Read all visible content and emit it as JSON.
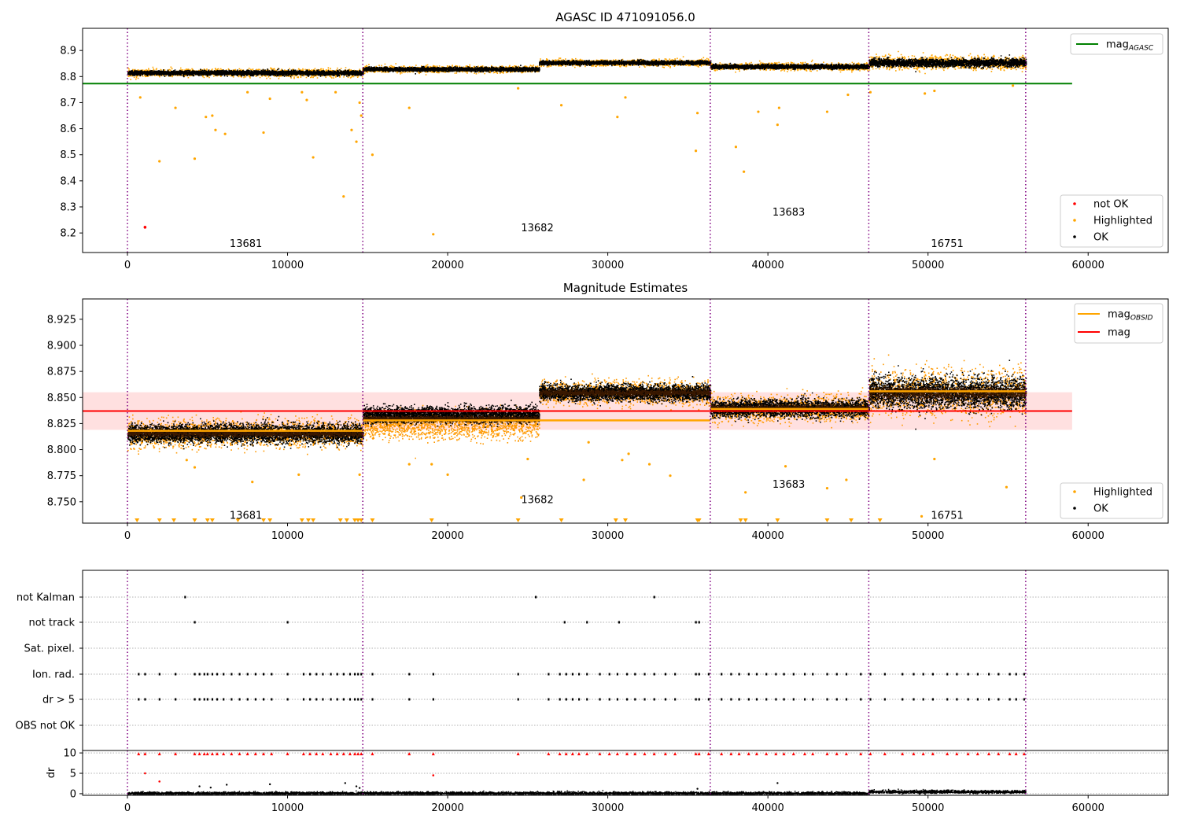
{
  "chart_data": [
    {
      "type": "scatter",
      "title": "AGASC ID 471091056.0",
      "xlim": [
        -2800,
        65000
      ],
      "ylim": [
        8.125,
        8.985
      ],
      "xticks": [
        0,
        10000,
        20000,
        30000,
        40000,
        50000,
        60000
      ],
      "yticks": [
        8.2,
        8.3,
        8.4,
        8.5,
        8.6,
        8.7,
        8.8,
        8.9
      ],
      "obsid_boundaries": [
        0,
        14700,
        36400,
        46300,
        56100
      ],
      "obsids": [
        {
          "label": "13681",
          "x": 7400,
          "y": 8.16
        },
        {
          "label": "13682",
          "x": 25600,
          "y": 8.22
        },
        {
          "label": "13683",
          "x": 41300,
          "y": 8.28
        },
        {
          "label": "16751",
          "x": 51200,
          "y": 8.16
        }
      ],
      "segments": [
        {
          "x0": 0,
          "x1": 14700,
          "center": 8.816,
          "half_width": 0.013
        },
        {
          "x0": 14700,
          "x1": 25700,
          "center": 8.83,
          "half_width": 0.011
        },
        {
          "x0": 25700,
          "x1": 36400,
          "center": 8.855,
          "half_width": 0.011
        },
        {
          "x0": 36400,
          "x1": 46300,
          "center": 8.84,
          "half_width": 0.012
        },
        {
          "x0": 46300,
          "x1": 56100,
          "center": 8.855,
          "half_width": 0.022
        }
      ],
      "reference_line": {
        "name": "mag",
        "subscript": "AGASC",
        "value": 8.773,
        "x0": -2800,
        "x1": 59000,
        "color": "#008000"
      },
      "outliers": {
        "highlighted": [
          [
            800,
            8.72
          ],
          [
            2000,
            8.475
          ],
          [
            3000,
            8.68
          ],
          [
            4200,
            8.485
          ],
          [
            4900,
            8.645
          ],
          [
            5300,
            8.65
          ],
          [
            5500,
            8.595
          ],
          [
            6100,
            8.58
          ],
          [
            7500,
            8.74
          ],
          [
            8500,
            8.585
          ],
          [
            8900,
            8.715
          ],
          [
            10900,
            8.74
          ],
          [
            11200,
            8.71
          ],
          [
            11600,
            8.49
          ],
          [
            13000,
            8.74
          ],
          [
            13500,
            8.34
          ],
          [
            14000,
            8.595
          ],
          [
            14300,
            8.55
          ],
          [
            14500,
            8.7
          ],
          [
            14600,
            8.65
          ],
          [
            15300,
            8.5
          ],
          [
            17600,
            8.68
          ],
          [
            19100,
            8.195
          ],
          [
            24400,
            8.755
          ],
          [
            27100,
            8.69
          ],
          [
            30600,
            8.645
          ],
          [
            31100,
            8.72
          ],
          [
            35500,
            8.515
          ],
          [
            35600,
            8.66
          ],
          [
            38000,
            8.53
          ],
          [
            38500,
            8.435
          ],
          [
            39400,
            8.665
          ],
          [
            40600,
            8.615
          ],
          [
            40700,
            8.68
          ],
          [
            43700,
            8.665
          ],
          [
            45000,
            8.73
          ],
          [
            46400,
            8.74
          ],
          [
            49800,
            8.735
          ],
          [
            50400,
            8.745
          ],
          [
            55300,
            8.765
          ]
        ],
        "not_ok": [
          [
            1100,
            8.222
          ]
        ]
      },
      "legends": [
        {
          "position": "upper-right",
          "entries": [
            {
              "label": "mag",
              "subscript": "AGASC",
              "marker": "line",
              "color": "#008000"
            }
          ]
        },
        {
          "position": "lower-right",
          "entries": [
            {
              "label": "not OK",
              "marker": "dot",
              "color": "#ff0000"
            },
            {
              "label": "Highlighted",
              "marker": "dot",
              "color": "#ffa500"
            },
            {
              "label": "OK",
              "marker": "dot",
              "color": "#000000"
            }
          ]
        }
      ]
    },
    {
      "type": "scatter",
      "title": "Magnitude Estimates",
      "xlim": [
        -2800,
        65000
      ],
      "ylim": [
        8.7295,
        8.9445
      ],
      "xticks": [
        0,
        10000,
        20000,
        30000,
        40000,
        50000,
        60000
      ],
      "yticks": [
        8.75,
        8.775,
        8.8,
        8.825,
        8.85,
        8.875,
        8.9,
        8.925
      ],
      "obsid_boundaries": [
        0,
        14700,
        36400,
        46300,
        56100
      ],
      "obsids": [
        {
          "label": "13681",
          "x": 7400,
          "y": 8.737
        },
        {
          "label": "13682",
          "x": 25600,
          "y": 8.752
        },
        {
          "label": "13683",
          "x": 41300,
          "y": 8.767
        },
        {
          "label": "16751",
          "x": 51200,
          "y": 8.737
        }
      ],
      "segments": [
        {
          "x0": 0,
          "x1": 14700,
          "center": 8.816,
          "half_width": 0.013
        },
        {
          "x0": 14700,
          "x1": 25700,
          "center": 8.83,
          "half_width": 0.011
        },
        {
          "x0": 25700,
          "x1": 36400,
          "center": 8.855,
          "half_width": 0.011
        },
        {
          "x0": 36400,
          "x1": 46300,
          "center": 8.84,
          "half_width": 0.012
        },
        {
          "x0": 46300,
          "x1": 56100,
          "center": 8.855,
          "half_width": 0.022
        }
      ],
      "obsid_means": [
        {
          "x0": 0,
          "x1": 14700,
          "value": 8.818
        },
        {
          "x0": 14700,
          "x1": 36400,
          "value": 8.828
        },
        {
          "x0": 36400,
          "x1": 46300,
          "value": 8.839
        },
        {
          "x0": 46300,
          "x1": 56100,
          "value": 8.856
        }
      ],
      "mag_line": {
        "value": 8.837,
        "x0": -2800,
        "x1": 59000,
        "band": [
          8.819,
          8.855
        ]
      },
      "outliers": {
        "highlighted": [
          [
            3700,
            8.79
          ],
          [
            4200,
            8.783
          ],
          [
            7800,
            8.769
          ],
          [
            10700,
            8.776
          ],
          [
            14500,
            8.776
          ],
          [
            17600,
            8.786
          ],
          [
            19000,
            8.786
          ],
          [
            20000,
            8.776
          ],
          [
            24600,
            8.754
          ],
          [
            25000,
            8.791
          ],
          [
            28500,
            8.771
          ],
          [
            28800,
            8.807
          ],
          [
            30900,
            8.79
          ],
          [
            31300,
            8.796
          ],
          [
            32600,
            8.786
          ],
          [
            33900,
            8.775
          ],
          [
            38600,
            8.759
          ],
          [
            41100,
            8.784
          ],
          [
            43700,
            8.763
          ],
          [
            44900,
            8.771
          ],
          [
            49600,
            8.736
          ],
          [
            50400,
            8.791
          ],
          [
            54900,
            8.764
          ]
        ],
        "lower_limit_x": [
          600,
          2000,
          2900,
          4200,
          5000,
          5300,
          6900,
          8500,
          8900,
          10900,
          11300,
          11600,
          13300,
          13700,
          14200,
          14400,
          14600,
          15300,
          19000,
          24400,
          27100,
          30500,
          31100,
          35600,
          35700,
          38300,
          38600,
          40600,
          43700,
          45200,
          47000
        ]
      },
      "legends": [
        {
          "position": "upper-right",
          "entries": [
            {
              "label": "mag",
              "subscript": "OBSID",
              "marker": "line",
              "color": "#ffa500"
            },
            {
              "label": "mag",
              "marker": "line",
              "color": "#ff0000"
            }
          ]
        },
        {
          "position": "lower-right",
          "entries": [
            {
              "label": "Highlighted",
              "marker": "dot",
              "color": "#ffa500"
            },
            {
              "label": "OK",
              "marker": "dot",
              "color": "#000000"
            }
          ]
        }
      ]
    },
    {
      "type": "scatter",
      "title": "",
      "xlim": [
        -2800,
        65000
      ],
      "xticks": [
        0,
        10000,
        20000,
        30000,
        40000,
        50000,
        60000
      ],
      "obsid_boundaries": [
        0,
        14700,
        36400,
        46300,
        56100
      ],
      "flag_categories": [
        "not Kalman",
        "not track",
        "Sat. pixel.",
        "Ion. rad.",
        "dr > 5",
        "OBS not OK"
      ],
      "flag_events": {
        "not Kalman": [
          3600,
          25500,
          32900
        ],
        "not track": [
          4200,
          10000,
          27300,
          28700,
          30700,
          35500,
          35700
        ],
        "Sat. pixel.": [],
        "Ion. rad.": [
          700,
          1100,
          2000,
          3000,
          4200,
          4500,
          4800,
          5000,
          5300,
          5600,
          6000,
          6500,
          7000,
          7500,
          8000,
          8500,
          9000,
          10000,
          11000,
          11400,
          11800,
          12200,
          12700,
          13100,
          13500,
          13900,
          14200,
          14400,
          14600,
          15300,
          17600,
          19100,
          24400,
          26300,
          27000,
          27400,
          27800,
          28200,
          28700,
          29500,
          30100,
          30600,
          31200,
          31700,
          32300,
          32900,
          33600,
          34200,
          35500,
          35700,
          36300,
          37100,
          37700,
          38200,
          38800,
          39300,
          39900,
          40500,
          41000,
          41600,
          42300,
          42800,
          43700,
          44300,
          44900,
          45800,
          46400,
          47300,
          48400,
          49100,
          49700,
          50300,
          51200,
          51800,
          52500,
          53100,
          53800,
          54400,
          55100,
          55500,
          56000
        ],
        "dr > 5": [
          700,
          1100,
          2000,
          3000,
          4200,
          4500,
          4800,
          5000,
          5300,
          5600,
          6000,
          6500,
          7000,
          7500,
          8000,
          8500,
          9000,
          10000,
          11000,
          11400,
          11800,
          12200,
          12700,
          13100,
          13500,
          13900,
          14200,
          14400,
          14600,
          15300,
          17600,
          19100,
          24400,
          26300,
          27000,
          27400,
          27800,
          28200,
          28700,
          29500,
          30100,
          30600,
          31200,
          31700,
          32300,
          32900,
          33600,
          34200,
          35500,
          35700,
          36300,
          37100,
          37700,
          38200,
          38800,
          39300,
          39900,
          40500,
          41000,
          41600,
          42300,
          42800,
          43700,
          44300,
          44900,
          45800,
          46400,
          47300,
          48400,
          49100,
          49700,
          50300,
          51200,
          51800,
          52500,
          53100,
          53800,
          54400,
          55100,
          55500,
          56000
        ],
        "OBS not OK": []
      }
    },
    {
      "type": "scatter",
      "title": "",
      "ylabel": "dr",
      "xlim": [
        -2800,
        65000
      ],
      "ylim": [
        -0.4,
        10.6
      ],
      "xticks": [
        0,
        10000,
        20000,
        30000,
        40000,
        50000,
        60000
      ],
      "yticks": [
        0,
        5,
        10
      ],
      "obsid_boundaries": [
        0,
        14700,
        36400,
        46300,
        56100
      ],
      "baseline_levels": [
        {
          "x0": 0,
          "x1": 46300,
          "value": 0.2
        },
        {
          "x0": 46300,
          "x1": 56100,
          "value": 0.6
        }
      ],
      "clipped_at_10_x": [
        700,
        1100,
        2000,
        3000,
        4200,
        4500,
        4800,
        5000,
        5300,
        5600,
        6000,
        6500,
        7000,
        7500,
        8000,
        8500,
        9000,
        10000,
        11000,
        11400,
        11800,
        12200,
        12700,
        13100,
        13500,
        13900,
        14200,
        14400,
        14600,
        15300,
        17600,
        19100,
        24400,
        26300,
        27000,
        27400,
        27800,
        28200,
        28700,
        29500,
        30100,
        30600,
        31200,
        31700,
        32300,
        32900,
        33600,
        34200,
        35500,
        35700,
        36300,
        37100,
        37700,
        38200,
        38800,
        39300,
        39900,
        40500,
        41000,
        41600,
        42300,
        42800,
        43700,
        44300,
        44900,
        45800,
        46400,
        47300,
        48400,
        49100,
        49700,
        50300,
        51200,
        51800,
        52500,
        53100,
        53800,
        54400,
        55100,
        55500,
        56000
      ],
      "outliers": {
        "red": [
          [
            1100,
            5.0
          ],
          [
            2000,
            3.0
          ],
          [
            19100,
            4.5
          ]
        ],
        "black": [
          [
            4500,
            1.8
          ],
          [
            5200,
            1.5
          ],
          [
            6200,
            2.2
          ],
          [
            8900,
            2.3
          ],
          [
            13600,
            2.6
          ],
          [
            14300,
            1.8
          ],
          [
            14500,
            1.4
          ],
          [
            35600,
            1.2
          ],
          [
            40600,
            2.6
          ]
        ]
      }
    }
  ]
}
